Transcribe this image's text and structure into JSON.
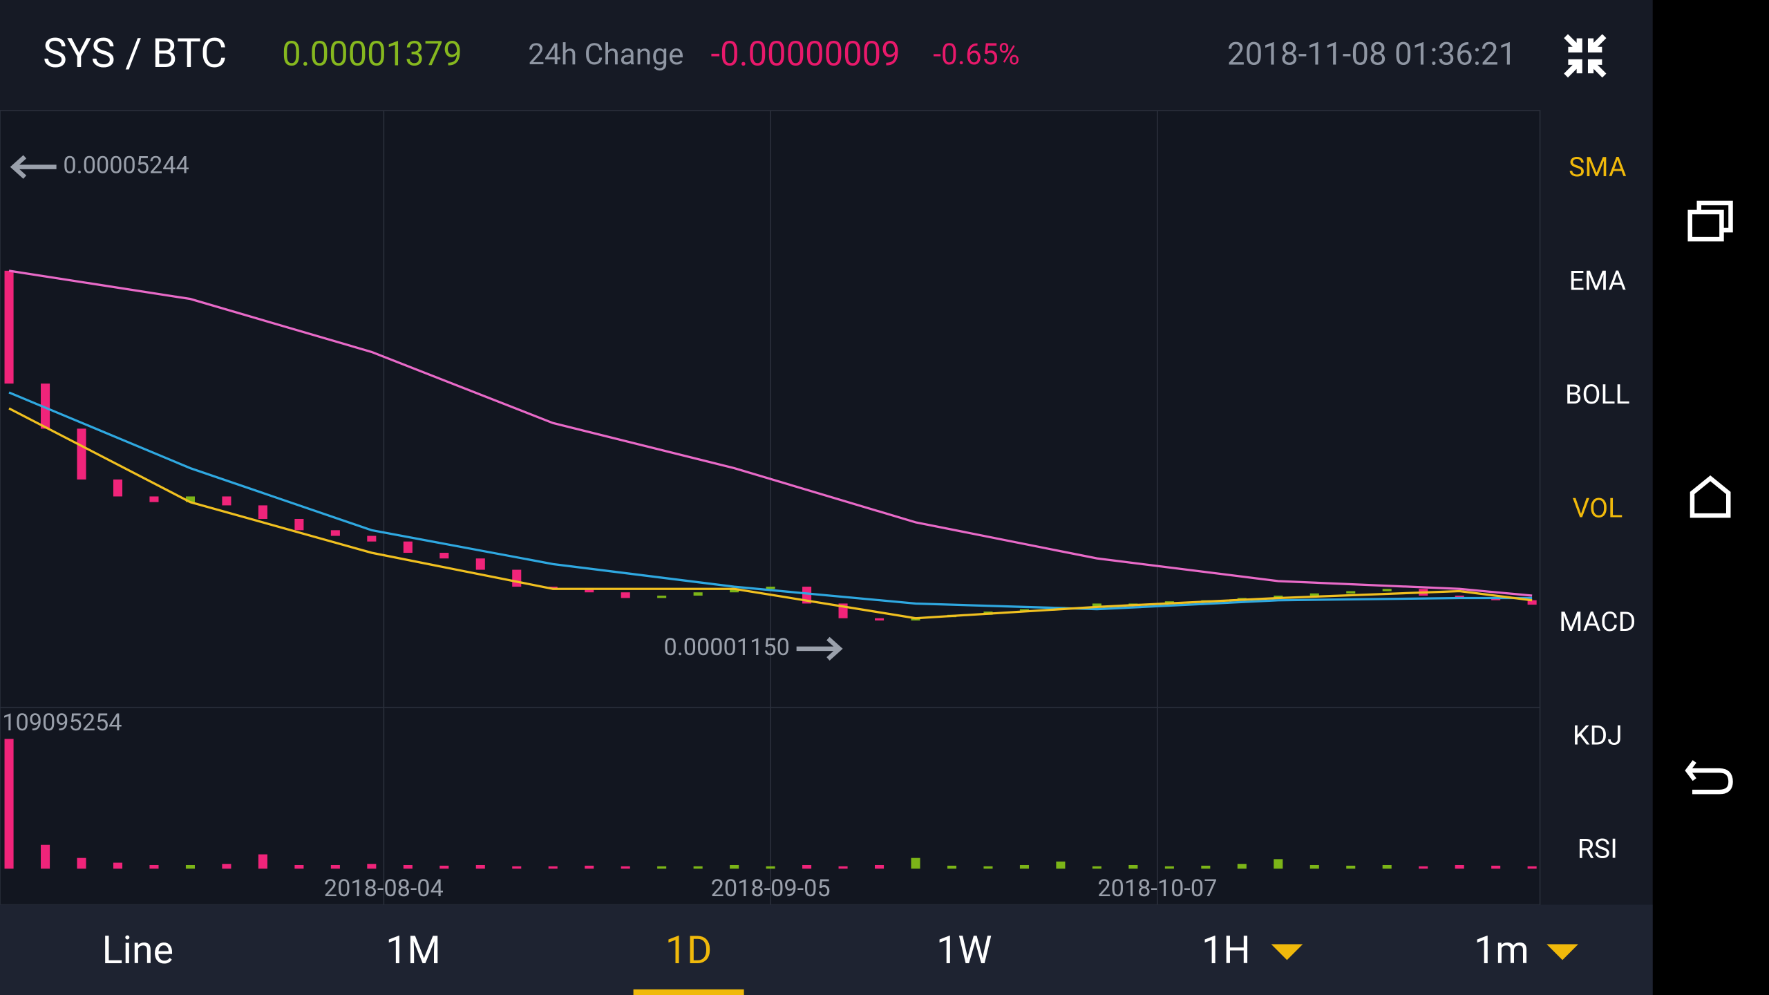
{
  "header": {
    "pair": "SYS / BTC",
    "price": "0.00001379",
    "change_label": "24h Change",
    "change": "-0.00000009",
    "change_pct": "-0.65%",
    "timestamp": "2018-11-08 01:36:21"
  },
  "indicators": [
    {
      "label": "SMA",
      "active": true
    },
    {
      "label": "EMA",
      "active": false
    },
    {
      "label": "BOLL",
      "active": false
    },
    {
      "label": "VOL",
      "active": true
    },
    {
      "label": "MACD",
      "active": false
    },
    {
      "label": "KDJ",
      "active": false
    },
    {
      "label": "RSI",
      "active": false
    }
  ],
  "tabs": [
    {
      "label": "Line",
      "active": false,
      "dropdown": false
    },
    {
      "label": "1M",
      "active": false,
      "dropdown": false
    },
    {
      "label": "1D",
      "active": true,
      "dropdown": false
    },
    {
      "label": "1W",
      "active": false,
      "dropdown": false
    },
    {
      "label": "1H",
      "active": false,
      "dropdown": true
    },
    {
      "label": "1m",
      "active": false,
      "dropdown": true
    }
  ],
  "chart_data": {
    "type": "candlestick",
    "up_color": "#7cb518",
    "down_color": "#f0247a",
    "x": [
      "2018-07-04",
      "2018-07-07",
      "2018-07-10",
      "2018-07-13",
      "2018-07-16",
      "2018-07-19",
      "2018-07-22",
      "2018-07-25",
      "2018-07-28",
      "2018-07-31",
      "2018-08-03",
      "2018-08-06",
      "2018-08-09",
      "2018-08-12",
      "2018-08-15",
      "2018-08-18",
      "2018-08-21",
      "2018-08-24",
      "2018-08-27",
      "2018-08-30",
      "2018-09-02",
      "2018-09-05",
      "2018-09-08",
      "2018-09-11",
      "2018-09-14",
      "2018-09-17",
      "2018-09-20",
      "2018-09-23",
      "2018-09-26",
      "2018-09-29",
      "2018-10-02",
      "2018-10-05",
      "2018-10-08",
      "2018-10-11",
      "2018-10-14",
      "2018-10-17",
      "2018-10-20",
      "2018-10-23",
      "2018-10-26",
      "2018-10-29",
      "2018-11-01",
      "2018-11-04",
      "2018-11-07"
    ],
    "open": [
      4.362e-05,
      3.403e-05,
      3.02e-05,
      2.588e-05,
      2.444e-05,
      2.396e-05,
      2.444e-05,
      2.368e-05,
      2.253e-05,
      2.157e-05,
      2.109e-05,
      2.061e-05,
      1.965e-05,
      1.917e-05,
      1.821e-05,
      1.677e-05,
      1.658e-05,
      1.629e-05,
      1.581e-05,
      1.601e-05,
      1.629e-05,
      1.658e-05,
      1.677e-05,
      1.534e-05,
      1.409e-05,
      1.39e-05,
      1.418e-05,
      1.438e-05,
      1.466e-05,
      1.486e-05,
      1.505e-05,
      1.534e-05,
      1.534e-05,
      1.553e-05,
      1.562e-05,
      1.581e-05,
      1.601e-05,
      1.62e-05,
      1.639e-05,
      1.658e-05,
      1.601e-05,
      1.581e-05,
      1.562e-05
    ],
    "close": [
      3.403e-05,
      3.02e-05,
      2.588e-05,
      2.444e-05,
      2.396e-05,
      2.444e-05,
      2.368e-05,
      2.253e-05,
      2.157e-05,
      2.109e-05,
      2.061e-05,
      1.965e-05,
      1.917e-05,
      1.821e-05,
      1.677e-05,
      1.658e-05,
      1.629e-05,
      1.581e-05,
      1.601e-05,
      1.629e-05,
      1.658e-05,
      1.677e-05,
      1.534e-05,
      1.409e-05,
      1.39e-05,
      1.418e-05,
      1.438e-05,
      1.466e-05,
      1.486e-05,
      1.505e-05,
      1.534e-05,
      1.534e-05,
      1.553e-05,
      1.562e-05,
      1.581e-05,
      1.601e-05,
      1.62e-05,
      1.639e-05,
      1.658e-05,
      1.601e-05,
      1.581e-05,
      1.562e-05,
      1.524e-05
    ],
    "volume": [
      109095254,
      20000000,
      9000000,
      5000000,
      3000000,
      3000000,
      4000000,
      12000000,
      3000000,
      3000000,
      4000000,
      3000000,
      2500000,
      3000000,
      2000000,
      2000000,
      2500000,
      2000000,
      2000000,
      2000000,
      3000000,
      2000000,
      3000000,
      2000000,
      3000000,
      9000000,
      2500000,
      2000000,
      3000000,
      6000000,
      2000000,
      3000000,
      2000000,
      2500000,
      4000000,
      8000000,
      3000000,
      2500000,
      3000000,
      2000000,
      3000000,
      2500000,
      2000000
    ],
    "series": [
      {
        "color": "#e86ac8",
        "x": [
          "2018-07-04",
          "2018-07-19",
          "2018-08-03",
          "2018-08-18",
          "2018-09-02",
          "2018-09-17",
          "2018-10-02",
          "2018-10-17",
          "2018-11-01",
          "2018-11-07"
        ],
        "values": [
          4.362e-05,
          4.122e-05,
          3.672e-05,
          3.068e-05,
          2.684e-05,
          2.224e-05,
          1.917e-05,
          1.725e-05,
          1.658e-05,
          1.601e-05
        ]
      },
      {
        "color": "#2fa8e0",
        "x": [
          "2018-07-04",
          "2018-07-19",
          "2018-08-03",
          "2018-08-18",
          "2018-09-02",
          "2018-09-17",
          "2018-10-02",
          "2018-10-17",
          "2018-11-01",
          "2018-11-07"
        ],
        "values": [
          3.327e-05,
          2.684e-05,
          2.157e-05,
          1.869e-05,
          1.677e-05,
          1.534e-05,
          1.486e-05,
          1.562e-05,
          1.581e-05,
          1.581e-05
        ]
      },
      {
        "color": "#f0c020",
        "x": [
          "2018-07-04",
          "2018-07-19",
          "2018-08-03",
          "2018-08-18",
          "2018-09-02",
          "2018-09-17",
          "2018-10-02",
          "2018-10-17",
          "2018-11-01",
          "2018-11-07"
        ],
        "values": [
          3.192e-05,
          2.396e-05,
          1.965e-05,
          1.658e-05,
          1.658e-05,
          1.409e-05,
          1.505e-05,
          1.581e-05,
          1.639e-05,
          1.562e-05
        ]
      }
    ],
    "high_mark": {
      "value": 5.244e-05,
      "label": "0.00005244"
    },
    "low_mark": {
      "value": 1.15e-05,
      "label": "0.00001150"
    },
    "volume_max": 109095254,
    "xlim": [
      "2018-07-04",
      "2018-11-07"
    ],
    "xticks": [
      "2018-08-04",
      "2018-09-05",
      "2018-10-07"
    ],
    "ylim": [
      6.71e-06,
      5.704e-05
    ],
    "grid": true
  }
}
